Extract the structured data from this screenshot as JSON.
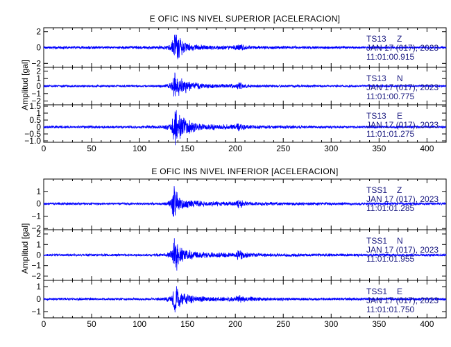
{
  "figure": {
    "ylabel": "Amplitud  [gal]"
  },
  "chart_data": [
    {
      "type": "line",
      "title": "E OFIC INS NIVEL SUPERIOR [ACELERACION]",
      "xlim": [
        0,
        420
      ],
      "xticks": [
        0,
        50,
        100,
        150,
        200,
        250,
        300,
        350,
        400
      ],
      "line_color": "#0000ff",
      "panels": [
        {
          "station": "TS13",
          "component": "Z",
          "date": "JAN 17 (017), 2023",
          "time": "11:01:00.915",
          "ylim": [
            -2.5,
            2.5
          ],
          "yticks": [
            -2,
            0,
            2
          ],
          "ytick_labels": [
            "−2",
            "0",
            "2"
          ],
          "envelope": {
            "x": [
              0,
              10,
              20,
              30,
              40,
              50,
              60,
              70,
              80,
              90,
              100,
              110,
              120,
              128,
              133,
              135,
              137,
              139,
              141,
              143,
              145,
              148,
              152,
              156,
              160,
              170,
              180,
              190,
              200,
              203,
              206,
              208,
              210,
              215,
              220,
              240,
              260,
              300,
              340,
              360,
              380,
              400,
              420
            ],
            "amplitude": [
              0.18,
              0.2,
              0.22,
              0.2,
              0.2,
              0.22,
              0.2,
              0.2,
              0.18,
              0.2,
              0.2,
              0.22,
              0.25,
              0.3,
              0.6,
              1.5,
              2.4,
              2.0,
              1.6,
              1.3,
              1.1,
              0.8,
              0.6,
              0.5,
              0.4,
              0.32,
              0.3,
              0.28,
              0.3,
              0.6,
              0.5,
              0.4,
              0.3,
              0.28,
              0.24,
              0.22,
              0.2,
              0.2,
              0.18,
              0.18,
              0.16,
              0.16,
              0.16
            ]
          }
        },
        {
          "station": "TS13",
          "component": "N",
          "date": "JAN 17 (017), 2023",
          "time": "11:01:00.775",
          "ylim": [
            -2.5,
            2.5
          ],
          "yticks": [
            -2,
            -1,
            0,
            1,
            2
          ],
          "ytick_labels": [
            "−2",
            "−1",
            "0",
            "1",
            "2"
          ],
          "envelope": {
            "x": [
              0,
              10,
              20,
              30,
              40,
              50,
              60,
              70,
              80,
              90,
              100,
              110,
              120,
              128,
              133,
              135,
              137,
              139,
              141,
              143,
              145,
              148,
              152,
              156,
              160,
              170,
              180,
              190,
              200,
              203,
              206,
              208,
              210,
              215,
              220,
              240,
              260,
              300,
              340,
              360,
              380,
              400,
              420
            ],
            "amplitude": [
              0.15,
              0.15,
              0.18,
              0.16,
              0.15,
              0.16,
              0.15,
              0.15,
              0.16,
              0.15,
              0.15,
              0.16,
              0.2,
              0.25,
              0.6,
              1.6,
              2.2,
              1.6,
              1.5,
              1.4,
              1.2,
              1.0,
              0.8,
              0.6,
              0.5,
              0.35,
              0.3,
              0.28,
              0.3,
              0.6,
              0.5,
              0.4,
              0.3,
              0.25,
              0.22,
              0.2,
              0.18,
              0.16,
              0.15,
              0.15,
              0.14,
              0.14,
              0.14
            ]
          }
        },
        {
          "station": "TS13",
          "component": "E",
          "date": "JAN 17 (017), 2023",
          "time": "11:01:01.275",
          "ylim": [
            -1.1,
            1.6
          ],
          "yticks": [
            -1,
            -0.5,
            0,
            0.5,
            1,
            1.5
          ],
          "ytick_labels": [
            "−1.0",
            "−0.5",
            "0",
            "0.5",
            "1",
            "1.5"
          ],
          "envelope": {
            "x": [
              0,
              10,
              20,
              30,
              40,
              50,
              60,
              70,
              80,
              90,
              100,
              110,
              120,
              128,
              133,
              135,
              137,
              139,
              141,
              143,
              145,
              148,
              152,
              156,
              160,
              170,
              180,
              190,
              200,
              203,
              206,
              208,
              210,
              215,
              220,
              240,
              260,
              300,
              340,
              360,
              380,
              400,
              420
            ],
            "amplitude": [
              0.1,
              0.1,
              0.12,
              0.1,
              0.1,
              0.12,
              0.1,
              0.1,
              0.1,
              0.1,
              0.1,
              0.12,
              0.14,
              0.2,
              0.4,
              1.0,
              1.5,
              1.2,
              1.0,
              0.9,
              0.8,
              0.7,
              0.55,
              0.45,
              0.35,
              0.25,
              0.22,
              0.2,
              0.2,
              0.35,
              0.3,
              0.25,
              0.2,
              0.18,
              0.16,
              0.14,
              0.12,
              0.1,
              0.1,
              0.1,
              0.1,
              0.1,
              0.1
            ]
          }
        }
      ]
    },
    {
      "type": "line",
      "title": "E OFIC INS NIVEL INFERIOR [ACELERACION]",
      "xlim": [
        0,
        420
      ],
      "xticks": [
        0,
        50,
        100,
        150,
        200,
        250,
        300,
        350,
        400
      ],
      "line_color": "#0000ff",
      "panels": [
        {
          "station": "TSS1",
          "component": "Z",
          "date": "JAN 17 (017), 2023",
          "time": "11:01:01.285",
          "ylim": [
            -2.1,
            2.0
          ],
          "yticks": [
            -2,
            -1,
            0,
            1
          ],
          "ytick_labels": [
            "−2",
            "−1",
            "0",
            "1"
          ],
          "envelope": {
            "x": [
              0,
              10,
              20,
              30,
              40,
              50,
              60,
              70,
              80,
              90,
              100,
              110,
              120,
              128,
              133,
              135,
              137,
              139,
              141,
              143,
              145,
              148,
              152,
              156,
              160,
              170,
              180,
              190,
              200,
              203,
              206,
              208,
              210,
              215,
              220,
              240,
              260,
              300,
              340,
              360,
              380,
              400,
              420
            ],
            "amplitude": [
              0.1,
              0.1,
              0.12,
              0.1,
              0.1,
              0.12,
              0.1,
              0.1,
              0.1,
              0.1,
              0.1,
              0.1,
              0.12,
              0.15,
              0.4,
              1.5,
              2.0,
              1.0,
              0.7,
              0.6,
              0.5,
              0.45,
              0.4,
              0.32,
              0.28,
              0.22,
              0.2,
              0.2,
              0.2,
              0.5,
              0.4,
              0.3,
              0.25,
              0.2,
              0.18,
              0.16,
              0.14,
              0.12,
              0.12,
              0.12,
              0.12,
              0.12,
              0.12
            ]
          }
        },
        {
          "station": "TSS1",
          "component": "N",
          "date": "JAN 17 (017), 2023",
          "time": "11:01:01.955",
          "ylim": [
            -2.4,
            2.4
          ],
          "yticks": [
            -2,
            -1,
            0,
            1,
            2
          ],
          "ytick_labels": [
            "−2",
            "−1",
            "0",
            "1",
            "2"
          ],
          "envelope": {
            "x": [
              0,
              10,
              20,
              30,
              40,
              50,
              60,
              70,
              80,
              90,
              100,
              110,
              120,
              128,
              133,
              135,
              137,
              139,
              141,
              143,
              145,
              148,
              152,
              156,
              160,
              170,
              180,
              190,
              200,
              203,
              206,
              208,
              210,
              215,
              220,
              240,
              260,
              300,
              340,
              360,
              380,
              400,
              420
            ],
            "amplitude": [
              0.12,
              0.12,
              0.14,
              0.12,
              0.12,
              0.14,
              0.12,
              0.12,
              0.12,
              0.12,
              0.12,
              0.14,
              0.16,
              0.2,
              0.5,
              1.4,
              2.2,
              1.6,
              1.2,
              1.0,
              0.8,
              0.6,
              0.5,
              0.4,
              0.35,
              0.3,
              0.25,
              0.25,
              0.25,
              0.6,
              0.5,
              0.4,
              0.3,
              0.25,
              0.2,
              0.18,
              0.16,
              0.14,
              0.14,
              0.14,
              0.14,
              0.14,
              0.14
            ]
          }
        },
        {
          "station": "TSS1",
          "component": "E",
          "date": "JAN 17 (017), 2023",
          "time": "11:01:01.750",
          "ylim": [
            -1.5,
            1.5
          ],
          "yticks": [
            -1,
            0,
            1
          ],
          "ytick_labels": [
            "−1",
            "0",
            "1"
          ],
          "envelope": {
            "x": [
              0,
              10,
              20,
              30,
              40,
              50,
              60,
              70,
              80,
              90,
              100,
              110,
              120,
              128,
              133,
              135,
              137,
              139,
              141,
              143,
              145,
              148,
              152,
              156,
              160,
              170,
              180,
              190,
              200,
              203,
              206,
              208,
              210,
              215,
              220,
              240,
              260,
              300,
              340,
              360,
              380,
              400,
              420
            ],
            "amplitude": [
              0.1,
              0.1,
              0.12,
              0.1,
              0.1,
              0.12,
              0.1,
              0.1,
              0.1,
              0.1,
              0.1,
              0.12,
              0.14,
              0.18,
              0.4,
              1.0,
              1.4,
              1.1,
              0.9,
              0.7,
              0.6,
              0.5,
              0.4,
              0.32,
              0.28,
              0.22,
              0.2,
              0.2,
              0.2,
              0.4,
              0.35,
              0.3,
              0.25,
              0.2,
              0.18,
              0.15,
              0.13,
              0.12,
              0.12,
              0.12,
              0.12,
              0.12,
              0.12
            ]
          }
        }
      ]
    }
  ]
}
